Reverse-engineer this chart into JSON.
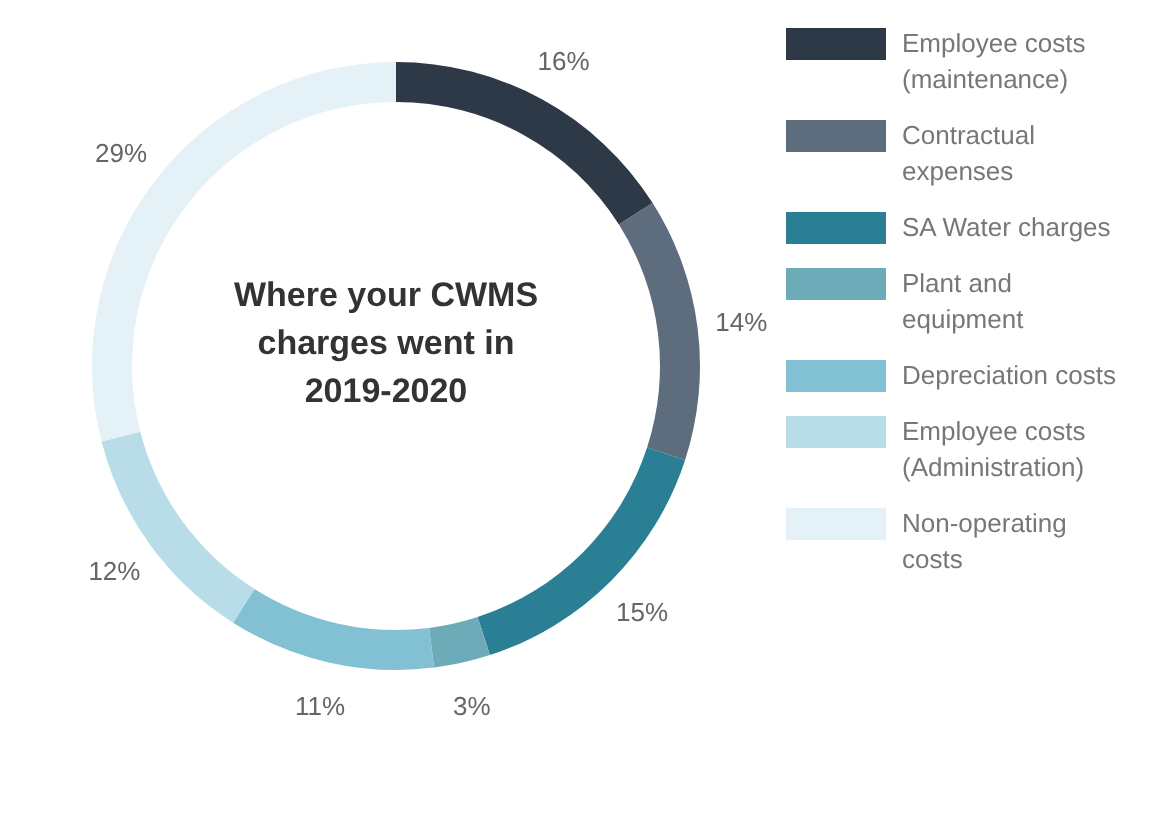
{
  "chart_data": {
    "type": "donut",
    "title": "Where your CWMS charges went in 2019-2020",
    "categories": [
      "Employee costs (maintenance)",
      "Contractual expenses",
      "SA Water charges",
      "Plant and equipment",
      "Depreciation costs",
      "Employee costs (Administration)",
      "Non-operating costs"
    ],
    "values": [
      16,
      14,
      15,
      3,
      11,
      12,
      29
    ],
    "value_labels": [
      "16%",
      "14%",
      "15%",
      "3%",
      "11%",
      "12%",
      "29%"
    ],
    "colors": [
      "#2e3947",
      "#5d6d7e",
      "#2b7f95",
      "#6eabb9",
      "#82c0d4",
      "#b9dce9",
      "#e4f1f7"
    ],
    "legend": "right"
  }
}
